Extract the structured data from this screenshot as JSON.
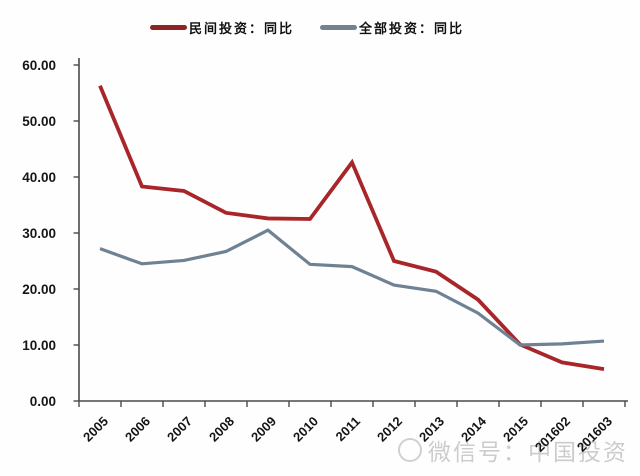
{
  "chart_data": {
    "type": "line",
    "categories": [
      "2005",
      "2006",
      "2007",
      "2008",
      "2009",
      "2010",
      "2011",
      "2012",
      "2013",
      "2014",
      "2015",
      "201602",
      "201603"
    ],
    "series": [
      {
        "name": "民间投资：同比",
        "color": "#a8262a",
        "marker_color": "#8e2424",
        "values": [
          56.3,
          38.3,
          37.5,
          33.6,
          32.6,
          32.5,
          42.6,
          25.0,
          23.1,
          18.1,
          10.1,
          6.9,
          5.7
        ]
      },
      {
        "name": "全部投资：同比",
        "color": "#6e8293",
        "marker_color": "#72828f",
        "values": [
          27.2,
          24.5,
          25.1,
          26.7,
          30.5,
          24.4,
          24.0,
          20.7,
          19.6,
          15.7,
          10.0,
          10.2,
          10.7
        ]
      }
    ],
    "title": "",
    "xlabel": "",
    "ylabel": "",
    "ylim": [
      0,
      60
    ],
    "ytick_step": 10,
    "ytick_labels": [
      "0.00",
      "10.00",
      "20.00",
      "30.00",
      "40.00",
      "50.00",
      "60.00"
    ],
    "grid": false,
    "legend_position": "top",
    "axis_color": "#4a4a4a",
    "tick_label_color": "#151515"
  },
  "watermark": {
    "text": "微信号：中国投资"
  }
}
